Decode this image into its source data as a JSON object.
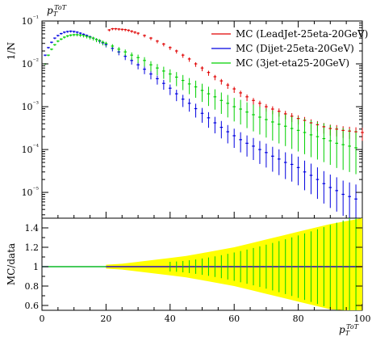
{
  "chart_data": [
    {
      "panel": "main",
      "type": "scatter",
      "title": "",
      "ylabel": "1/N",
      "plot_title_label": "p_T^ToT",
      "y_scale": "log",
      "ylim": [
        2.5e-06,
        0.1
      ],
      "xlim": [
        0,
        100
      ],
      "grid": false,
      "legend_position": "top-right",
      "y_tick_labels": [
        "10⁻¹",
        "10⁻²",
        "10⁻³",
        "10⁻⁴",
        "10⁻⁵"
      ],
      "series": [
        {
          "name": "MC (LeadJet-25eta-20GeV)",
          "color": "#e00000",
          "x": [
            21,
            22,
            23,
            24,
            25,
            26,
            27,
            28,
            29,
            30,
            32,
            34,
            36,
            38,
            40,
            42,
            44,
            46,
            48,
            50,
            52,
            54,
            56,
            58,
            60,
            62,
            64,
            66,
            68,
            70,
            72,
            74,
            76,
            78,
            80,
            82,
            84,
            86,
            88,
            90,
            92,
            94,
            96,
            98,
            100
          ],
          "y": [
            0.062,
            0.066,
            0.066,
            0.065,
            0.064,
            0.063,
            0.061,
            0.058,
            0.055,
            0.052,
            0.046,
            0.04,
            0.034,
            0.029,
            0.024,
            0.02,
            0.016,
            0.013,
            0.01,
            0.008,
            0.0063,
            0.005,
            0.004,
            0.0032,
            0.0026,
            0.0021,
            0.0017,
            0.0014,
            0.0012,
            0.001,
            0.00088,
            0.00078,
            0.00068,
            0.0006,
            0.00053,
            0.00048,
            0.00042,
            0.00038,
            0.00034,
            0.00031,
            0.0003,
            0.00028,
            0.00027,
            0.00026,
            0.00025
          ]
        },
        {
          "name": "MC (Dijet-25eta-20GeV)",
          "color": "#0000e0",
          "x": [
            1,
            2,
            3,
            4,
            5,
            6,
            7,
            8,
            9,
            10,
            11,
            12,
            13,
            14,
            15,
            16,
            17,
            18,
            19,
            20,
            22,
            24,
            26,
            28,
            30,
            32,
            34,
            36,
            38,
            40,
            42,
            44,
            46,
            48,
            50,
            52,
            54,
            56,
            58,
            60,
            62,
            64,
            66,
            68,
            70,
            72,
            74,
            76,
            78,
            80,
            82,
            84,
            86,
            88,
            90,
            92,
            94,
            96,
            98
          ],
          "y": [
            0.016,
            0.024,
            0.032,
            0.04,
            0.046,
            0.051,
            0.055,
            0.057,
            0.058,
            0.057,
            0.055,
            0.052,
            0.049,
            0.046,
            0.043,
            0.04,
            0.037,
            0.034,
            0.031,
            0.028,
            0.023,
            0.019,
            0.015,
            0.012,
            0.0095,
            0.0075,
            0.0058,
            0.0045,
            0.0035,
            0.0027,
            0.002,
            0.0015,
            0.0012,
            0.0009,
            0.0007,
            0.00055,
            0.00042,
            0.00033,
            0.00026,
            0.00021,
            0.00017,
            0.00014,
            0.00012,
            0.0001,
            8.5e-05,
            7e-05,
            6e-05,
            5e-05,
            4.5e-05,
            3.8e-05,
            3e-05,
            2.5e-05,
            2e-05,
            1.6e-05,
            1.3e-05,
            1.1e-05,
            9e-06,
            8e-06,
            7e-06
          ]
        },
        {
          "name": "MC (3jet-eta25-20GeV)",
          "color": "#00d000",
          "x": [
            1,
            2,
            3,
            4,
            5,
            6,
            7,
            8,
            9,
            10,
            11,
            12,
            13,
            14,
            15,
            16,
            17,
            18,
            19,
            20,
            22,
            24,
            26,
            28,
            30,
            32,
            34,
            36,
            38,
            40,
            42,
            44,
            46,
            48,
            50,
            52,
            54,
            56,
            58,
            60,
            62,
            64,
            66,
            68,
            70,
            72,
            74,
            76,
            78,
            80,
            82,
            84,
            86,
            88,
            90,
            92,
            94,
            96,
            98
          ],
          "y": [
            0.01,
            0.016,
            0.022,
            0.028,
            0.034,
            0.038,
            0.042,
            0.045,
            0.047,
            0.048,
            0.048,
            0.047,
            0.046,
            0.044,
            0.042,
            0.04,
            0.037,
            0.035,
            0.032,
            0.03,
            0.026,
            0.022,
            0.019,
            0.016,
            0.014,
            0.012,
            0.0095,
            0.008,
            0.0068,
            0.0058,
            0.0049,
            0.0041,
            0.0034,
            0.0029,
            0.0024,
            0.002,
            0.0017,
            0.0014,
            0.0012,
            0.001,
            0.00088,
            0.00075,
            0.00065,
            0.00057,
            0.0005,
            0.00044,
            0.00039,
            0.00035,
            0.00031,
            0.00028,
            0.00025,
            0.00022,
            0.0002,
            0.00018,
            0.00016,
            0.00014,
            0.00013,
            0.00012,
            0.00011
          ]
        }
      ]
    },
    {
      "panel": "ratio",
      "type": "line",
      "title": "",
      "xlabel": "p_T^ToT",
      "ylabel": "MC/data",
      "xlim": [
        0,
        100
      ],
      "ylim": [
        0.55,
        1.5
      ],
      "grid": false,
      "x_tick_labels": [
        "0",
        "20",
        "40",
        "60",
        "80",
        "100"
      ],
      "y_tick_labels": [
        "0.6",
        "0.8",
        "1",
        "1.2",
        "1.4"
      ],
      "reference_line": 1,
      "reference_line_color": "#000000",
      "uncertainty_band_color": "#ffff00",
      "uncertainty_band": {
        "x": [
          20,
          25,
          30,
          35,
          40,
          45,
          50,
          55,
          60,
          65,
          70,
          75,
          80,
          85,
          90,
          95,
          100
        ],
        "half_width": [
          0.02,
          0.03,
          0.05,
          0.07,
          0.09,
          0.11,
          0.14,
          0.17,
          0.2,
          0.24,
          0.28,
          0.32,
          0.36,
          0.4,
          0.44,
          0.47,
          0.5
        ]
      },
      "series": [
        {
          "name": "MC (LeadJet-25eta-20GeV)",
          "color": "#e00000",
          "x": [
            20,
            40,
            60,
            80,
            100
          ],
          "y": [
            1,
            1,
            1,
            1,
            1
          ]
        },
        {
          "name": "MC (Dijet-25eta-20GeV)",
          "color": "#0000e0",
          "x": [
            0,
            20,
            40,
            60,
            80,
            100
          ],
          "y": [
            1,
            1,
            1,
            1,
            1,
            1
          ]
        },
        {
          "name": "MC (3jet-eta25-20GeV)",
          "color": "#00d000",
          "x": [
            0,
            20
          ],
          "y": [
            1,
            1
          ]
        }
      ]
    }
  ]
}
